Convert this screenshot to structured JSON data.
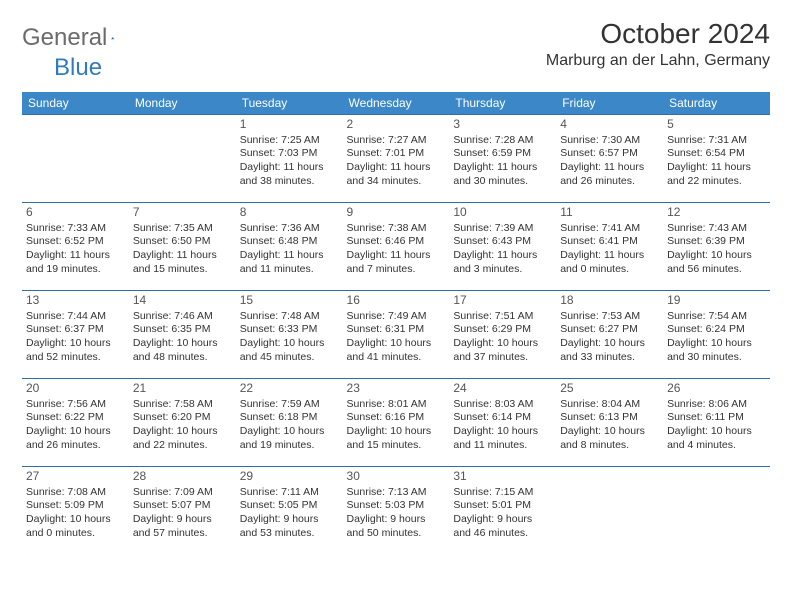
{
  "logo": {
    "general": "General",
    "blue": "Blue"
  },
  "title": "October 2024",
  "location": "Marburg an der Lahn, Germany",
  "colors": {
    "header_bg": "#3b87c8",
    "header_text": "#ffffff",
    "border": "#2f6fa8",
    "logo_gray": "#6b6b6b",
    "logo_blue": "#2f7bbf"
  },
  "weekdays": [
    "Sunday",
    "Monday",
    "Tuesday",
    "Wednesday",
    "Thursday",
    "Friday",
    "Saturday"
  ],
  "calendar": {
    "first_weekday_index": 2,
    "days": [
      {
        "n": "1",
        "sunrise": "7:25 AM",
        "sunset": "7:03 PM",
        "daylight": "11 hours and 38 minutes."
      },
      {
        "n": "2",
        "sunrise": "7:27 AM",
        "sunset": "7:01 PM",
        "daylight": "11 hours and 34 minutes."
      },
      {
        "n": "3",
        "sunrise": "7:28 AM",
        "sunset": "6:59 PM",
        "daylight": "11 hours and 30 minutes."
      },
      {
        "n": "4",
        "sunrise": "7:30 AM",
        "sunset": "6:57 PM",
        "daylight": "11 hours and 26 minutes."
      },
      {
        "n": "5",
        "sunrise": "7:31 AM",
        "sunset": "6:54 PM",
        "daylight": "11 hours and 22 minutes."
      },
      {
        "n": "6",
        "sunrise": "7:33 AM",
        "sunset": "6:52 PM",
        "daylight": "11 hours and 19 minutes."
      },
      {
        "n": "7",
        "sunrise": "7:35 AM",
        "sunset": "6:50 PM",
        "daylight": "11 hours and 15 minutes."
      },
      {
        "n": "8",
        "sunrise": "7:36 AM",
        "sunset": "6:48 PM",
        "daylight": "11 hours and 11 minutes."
      },
      {
        "n": "9",
        "sunrise": "7:38 AM",
        "sunset": "6:46 PM",
        "daylight": "11 hours and 7 minutes."
      },
      {
        "n": "10",
        "sunrise": "7:39 AM",
        "sunset": "6:43 PM",
        "daylight": "11 hours and 3 minutes."
      },
      {
        "n": "11",
        "sunrise": "7:41 AM",
        "sunset": "6:41 PM",
        "daylight": "11 hours and 0 minutes."
      },
      {
        "n": "12",
        "sunrise": "7:43 AM",
        "sunset": "6:39 PM",
        "daylight": "10 hours and 56 minutes."
      },
      {
        "n": "13",
        "sunrise": "7:44 AM",
        "sunset": "6:37 PM",
        "daylight": "10 hours and 52 minutes."
      },
      {
        "n": "14",
        "sunrise": "7:46 AM",
        "sunset": "6:35 PM",
        "daylight": "10 hours and 48 minutes."
      },
      {
        "n": "15",
        "sunrise": "7:48 AM",
        "sunset": "6:33 PM",
        "daylight": "10 hours and 45 minutes."
      },
      {
        "n": "16",
        "sunrise": "7:49 AM",
        "sunset": "6:31 PM",
        "daylight": "10 hours and 41 minutes."
      },
      {
        "n": "17",
        "sunrise": "7:51 AM",
        "sunset": "6:29 PM",
        "daylight": "10 hours and 37 minutes."
      },
      {
        "n": "18",
        "sunrise": "7:53 AM",
        "sunset": "6:27 PM",
        "daylight": "10 hours and 33 minutes."
      },
      {
        "n": "19",
        "sunrise": "7:54 AM",
        "sunset": "6:24 PM",
        "daylight": "10 hours and 30 minutes."
      },
      {
        "n": "20",
        "sunrise": "7:56 AM",
        "sunset": "6:22 PM",
        "daylight": "10 hours and 26 minutes."
      },
      {
        "n": "21",
        "sunrise": "7:58 AM",
        "sunset": "6:20 PM",
        "daylight": "10 hours and 22 minutes."
      },
      {
        "n": "22",
        "sunrise": "7:59 AM",
        "sunset": "6:18 PM",
        "daylight": "10 hours and 19 minutes."
      },
      {
        "n": "23",
        "sunrise": "8:01 AM",
        "sunset": "6:16 PM",
        "daylight": "10 hours and 15 minutes."
      },
      {
        "n": "24",
        "sunrise": "8:03 AM",
        "sunset": "6:14 PM",
        "daylight": "10 hours and 11 minutes."
      },
      {
        "n": "25",
        "sunrise": "8:04 AM",
        "sunset": "6:13 PM",
        "daylight": "10 hours and 8 minutes."
      },
      {
        "n": "26",
        "sunrise": "8:06 AM",
        "sunset": "6:11 PM",
        "daylight": "10 hours and 4 minutes."
      },
      {
        "n": "27",
        "sunrise": "7:08 AM",
        "sunset": "5:09 PM",
        "daylight": "10 hours and 0 minutes."
      },
      {
        "n": "28",
        "sunrise": "7:09 AM",
        "sunset": "5:07 PM",
        "daylight": "9 hours and 57 minutes."
      },
      {
        "n": "29",
        "sunrise": "7:11 AM",
        "sunset": "5:05 PM",
        "daylight": "9 hours and 53 minutes."
      },
      {
        "n": "30",
        "sunrise": "7:13 AM",
        "sunset": "5:03 PM",
        "daylight": "9 hours and 50 minutes."
      },
      {
        "n": "31",
        "sunrise": "7:15 AM",
        "sunset": "5:01 PM",
        "daylight": "9 hours and 46 minutes."
      }
    ]
  },
  "labels": {
    "sunrise": "Sunrise:",
    "sunset": "Sunset:",
    "daylight": "Daylight:"
  }
}
